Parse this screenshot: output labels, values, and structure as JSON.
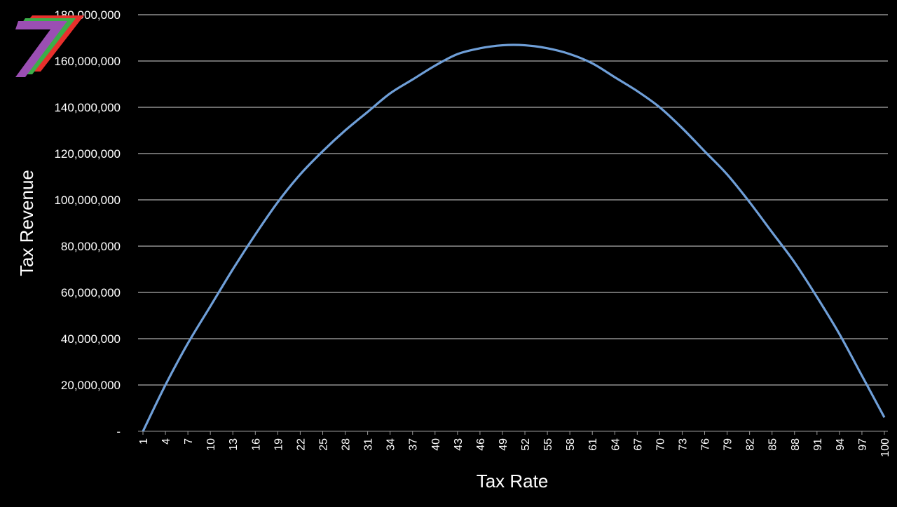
{
  "chart_data": {
    "type": "line",
    "xlabel": "Tax Rate",
    "ylabel": "Tax Revenue",
    "ylim": [
      0,
      180000000
    ],
    "y_ticks": [
      {
        "value": 0,
        "label": "-"
      },
      {
        "value": 20000000,
        "label": "20,000,000"
      },
      {
        "value": 40000000,
        "label": "40,000,000"
      },
      {
        "value": 60000000,
        "label": "60,000,000"
      },
      {
        "value": 80000000,
        "label": "80,000,000"
      },
      {
        "value": 100000000,
        "label": "100,000,000"
      },
      {
        "value": 120000000,
        "label": "120,000,000"
      },
      {
        "value": 140000000,
        "label": "140,000,000"
      },
      {
        "value": 160000000,
        "label": "160,000,000"
      },
      {
        "value": 180000000,
        "label": "180,000,000"
      }
    ],
    "x_ticks": [
      "1",
      "4",
      "7",
      "10",
      "13",
      "16",
      "19",
      "22",
      "25",
      "28",
      "31",
      "34",
      "37",
      "40",
      "43",
      "46",
      "49",
      "52",
      "55",
      "58",
      "61",
      "64",
      "67",
      "70",
      "73",
      "76",
      "79",
      "82",
      "85",
      "88",
      "91",
      "94",
      "97",
      "100"
    ],
    "grid": "horizontal",
    "legend": "none",
    "series": [
      {
        "color": "#6f9fd8",
        "x": [
          1,
          4,
          7,
          10,
          13,
          16,
          19,
          22,
          25,
          28,
          31,
          34,
          37,
          40,
          43,
          46,
          49,
          52,
          55,
          58,
          61,
          64,
          67,
          70,
          73,
          76,
          79,
          82,
          85,
          88,
          91,
          94,
          97,
          100
        ],
        "values": [
          0,
          20000000,
          38000000,
          54000000,
          70000000,
          85000000,
          99000000,
          111000000,
          121000000,
          130000000,
          138000000,
          146000000,
          152000000,
          158000000,
          163000000,
          165500000,
          166800000,
          166800000,
          165500000,
          163000000,
          159000000,
          153000000,
          147000000,
          140000000,
          131000000,
          121000000,
          111000000,
          99000000,
          86000000,
          73000000,
          58000000,
          42000000,
          24000000,
          6000000
        ]
      }
    ]
  },
  "logo": {
    "name": "stripe-seven-logo",
    "colors": [
      "#9b4fb3",
      "#3cae49",
      "#e8302c"
    ]
  }
}
